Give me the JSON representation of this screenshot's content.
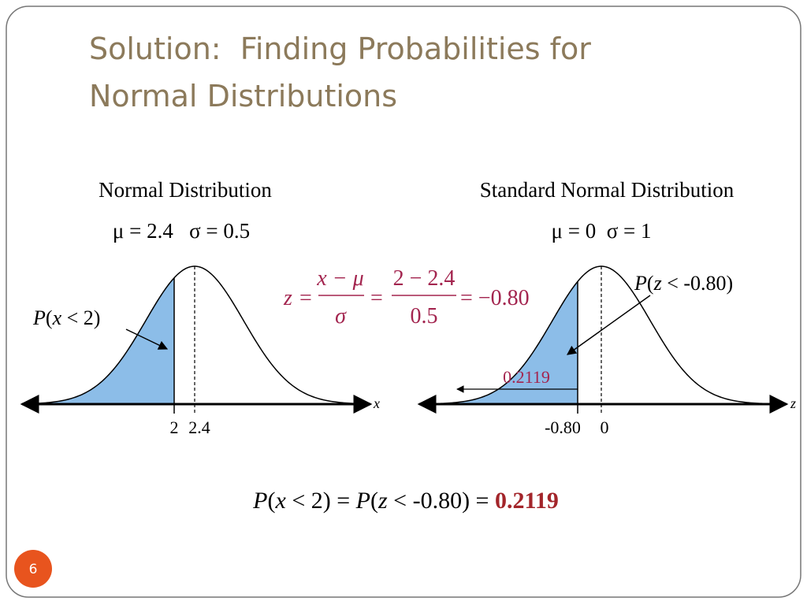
{
  "title": {
    "line1": "Solution:  Finding Probabilities for",
    "line2": "Normal Distributions"
  },
  "left": {
    "heading": "Normal Distribution",
    "params": "μ = 2.4   σ = 0.5",
    "area_label": [
      "P",
      "(",
      "x",
      " < 2)"
    ],
    "axis_var": "x",
    "ticks": [
      "2",
      "2.4"
    ]
  },
  "right": {
    "heading": "Standard Normal Distribution",
    "params": "μ = 0  σ = 1",
    "area_label": [
      "P",
      "(",
      "z",
      " < -0.80)"
    ],
    "area_value": "0.2119",
    "axis_var": "z",
    "ticks": [
      "-0.80",
      "0"
    ]
  },
  "formula": {
    "lhs": "z",
    "eq1": "=",
    "num1": "x − μ",
    "den1": "σ",
    "eq2": "=",
    "num2": "2 − 2.4",
    "den2": "0.5",
    "result": "= −0.80"
  },
  "conclusion": [
    "P",
    "(",
    "x",
    " < 2) = ",
    "P",
    "(",
    "z",
    " < -0.80) = ",
    "0.2119"
  ],
  "page_number": "6"
}
